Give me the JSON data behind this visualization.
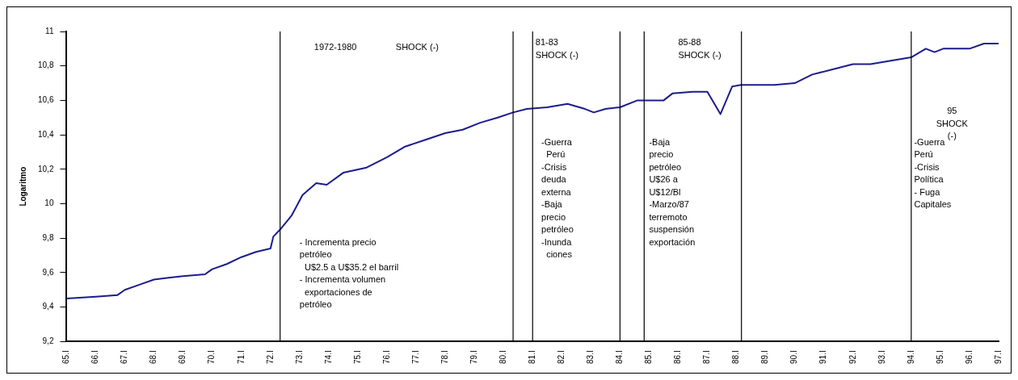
{
  "chart_data": {
    "type": "line",
    "ylabel": "Logaritmo",
    "x": [
      65,
      66,
      66.75,
      67,
      67.5,
      68,
      68.5,
      69,
      69.75,
      70,
      70.5,
      71,
      71.5,
      72,
      72.1,
      72.33,
      72.72,
      73.1,
      73.57,
      73.93,
      74.5,
      75.3,
      76,
      76.6,
      77.3,
      78,
      78.6,
      79.2,
      79.8,
      80.33,
      80.8,
      81.5,
      82.2,
      82.8,
      83.1,
      83.5,
      84,
      84.6,
      85,
      85.5,
      85.8,
      86.5,
      87,
      87.45,
      87.85,
      88.15,
      89.3,
      90,
      90.6,
      91.3,
      92,
      92.6,
      93.3,
      94,
      94.5,
      94.8,
      95.1,
      96,
      96.5,
      97
    ],
    "series": [
      {
        "color": "#1c1c8c",
        "values": [
          9.45,
          9.46,
          9.47,
          9.5,
          9.53,
          9.56,
          9.57,
          9.58,
          9.59,
          9.62,
          9.65,
          9.69,
          9.72,
          9.74,
          9.81,
          9.85,
          9.93,
          10.05,
          10.12,
          10.11,
          10.18,
          10.21,
          10.27,
          10.33,
          10.37,
          10.41,
          10.43,
          10.47,
          10.5,
          10.53,
          10.55,
          10.56,
          10.58,
          10.55,
          10.53,
          10.55,
          10.56,
          10.6,
          10.6,
          10.6,
          10.64,
          10.65,
          10.65,
          10.52,
          10.68,
          10.69,
          10.69,
          10.7,
          10.75,
          10.78,
          10.81,
          10.81,
          10.83,
          10.85,
          10.9,
          10.88,
          10.9,
          10.9,
          10.93,
          10.93
        ]
      }
    ],
    "xlim": [
      65,
      97
    ],
    "xticks": [
      {
        "value": 65,
        "label": "65.I"
      },
      {
        "value": 66,
        "label": "66.I"
      },
      {
        "value": 67,
        "label": "67.I"
      },
      {
        "value": 68,
        "label": "68.I"
      },
      {
        "value": 69,
        "label": "69.I"
      },
      {
        "value": 70,
        "label": "70.I"
      },
      {
        "value": 71,
        "label": "71.I"
      },
      {
        "value": 72,
        "label": "72.I"
      },
      {
        "value": 73,
        "label": "73.I"
      },
      {
        "value": 74,
        "label": "74.I"
      },
      {
        "value": 75,
        "label": "75.I"
      },
      {
        "value": 76,
        "label": "76.I"
      },
      {
        "value": 77,
        "label": "77.I"
      },
      {
        "value": 78,
        "label": "78.I"
      },
      {
        "value": 79,
        "label": "79.I"
      },
      {
        "value": 80,
        "label": "80.I"
      },
      {
        "value": 81,
        "label": "81.I"
      },
      {
        "value": 82,
        "label": "82.I"
      },
      {
        "value": 83,
        "label": "83.I"
      },
      {
        "value": 84,
        "label": "84.I"
      },
      {
        "value": 85,
        "label": "85.I"
      },
      {
        "value": 86,
        "label": "86.I"
      },
      {
        "value": 87,
        "label": "87.I"
      },
      {
        "value": 88,
        "label": "88.I"
      },
      {
        "value": 89,
        "label": "89.I"
      },
      {
        "value": 90,
        "label": "90.I"
      },
      {
        "value": 91,
        "label": "91.I"
      },
      {
        "value": 92,
        "label": "92.I"
      },
      {
        "value": 93,
        "label": "93.I"
      },
      {
        "value": 94,
        "label": "94.I"
      },
      {
        "value": 95,
        "label": "95.I"
      },
      {
        "value": 96,
        "label": "96.I"
      },
      {
        "value": 97,
        "label": "97.I"
      }
    ],
    "ylim": [
      9.2,
      11
    ],
    "yticks": [
      {
        "value": 9.2,
        "label": "9,2"
      },
      {
        "value": 9.4,
        "label": "9,4"
      },
      {
        "value": 9.6,
        "label": "9,6"
      },
      {
        "value": 9.8,
        "label": "9,8"
      },
      10,
      {
        "value": 10.2,
        "label": "10,2"
      },
      {
        "value": 10.4,
        "label": "10,4"
      },
      {
        "value": 10.6,
        "label": "10,6"
      },
      {
        "value": 10.8,
        "label": "10,8"
      },
      11
    ],
    "ref_lines": [
      {
        "axis": "x",
        "value": 72.33,
        "color": "#000000"
      },
      {
        "axis": "x",
        "value": 80.33,
        "color": "#000000"
      },
      {
        "axis": "x",
        "value": 81,
        "color": "#000000"
      },
      {
        "axis": "x",
        "value": 84,
        "color": "#000000"
      },
      {
        "axis": "x",
        "value": 84.83,
        "color": "#000000"
      },
      {
        "axis": "x",
        "value": 88.17,
        "color": "#000000"
      },
      {
        "axis": "x",
        "value": 94,
        "color": "#000000"
      }
    ],
    "annotations": [
      "1972-1980",
      "SHOCK (-)",
      "- Incrementa precio\npetróleo\n  U$2.5 a U$35.2 el barril\n- Incrementa volumen\n  exportaciones de\npetróleo",
      "81-83\nSHOCK (-)",
      "-Guerra\n  Perú\n-Crisis\ndeuda\nexterna\n-Baja\nprecio\npetróleo\n-Inunda\n  ciones",
      "85-88\nSHOCK (-)",
      "-Baja\nprecio\npetróleo\nU$26 a\nU$12/Bl\n-Marzo/87\nterremoto\nsuspensión\nexportación",
      "95\nSHOCK\n(-)",
      "-Guerra\nPerú\n-Crisis\nPolítica\n- Fuga\nCapitales"
    ],
    "grid": false,
    "legend": false,
    "marker": "none",
    "line_style": "solid"
  }
}
